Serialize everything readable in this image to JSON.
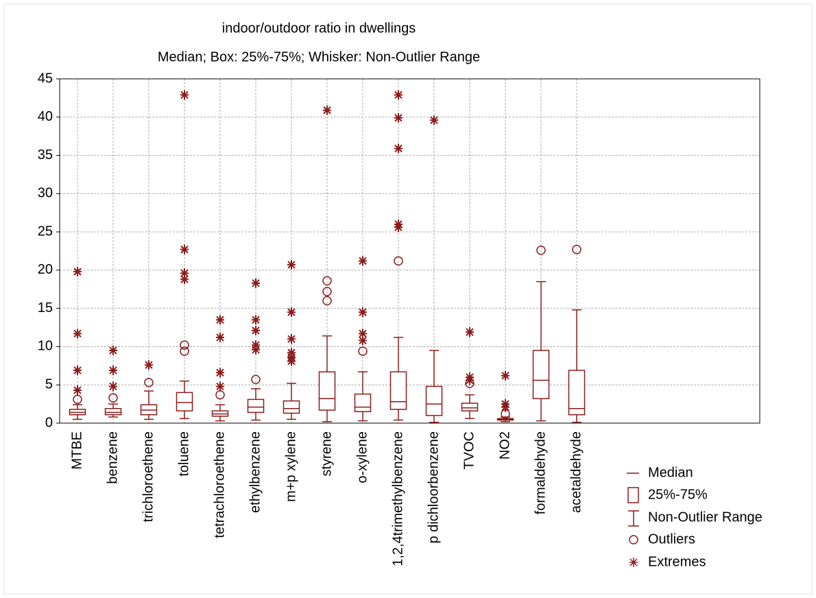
{
  "chart_data": {
    "type": "box",
    "title": "indoor/outdoor ratio in dwellings",
    "subtitle": "Median; Box: 25%-75%; Whisker: Non-Outlier Range",
    "color": "#8b1a1a",
    "ylim": [
      0,
      45
    ],
    "yticks": [
      0,
      5,
      10,
      15,
      20,
      25,
      30,
      35,
      40,
      45
    ],
    "grid": true,
    "legend": [
      "Median",
      "25%-75%",
      "Non-Outlier Range",
      "Outliers",
      "Extremes"
    ],
    "categories": [
      "MTBE",
      "benzene",
      "trichloroethene",
      "toluene",
      "tetrachloroethene",
      "ethylbenzene",
      "m+p xylene",
      "styrene",
      "o-xylene",
      "1,2,4trimethylbenzene",
      "p dichloorbenzene",
      "TVOC",
      "NO2",
      "formaldehyde",
      "acetaldehyde"
    ],
    "boxes": [
      {
        "whisker_low": 0.5,
        "q1": 1.1,
        "median": 1.4,
        "q3": 1.8,
        "whisker_high": 2.4,
        "outliers": [
          3.1
        ],
        "extremes": [
          4.3,
          6.9,
          11.7,
          19.8
        ]
      },
      {
        "whisker_low": 0.8,
        "q1": 1.1,
        "median": 1.4,
        "q3": 1.9,
        "whisker_high": 2.5,
        "outliers": [
          3.3
        ],
        "extremes": [
          4.8,
          6.9,
          9.5
        ]
      },
      {
        "whisker_low": 0.5,
        "q1": 1.1,
        "median": 1.7,
        "q3": 2.4,
        "whisker_high": 4.2,
        "outliers": [
          5.3
        ],
        "extremes": [
          7.6
        ]
      },
      {
        "whisker_low": 0.6,
        "q1": 1.6,
        "median": 2.7,
        "q3": 4.0,
        "whisker_high": 5.5,
        "outliers": [
          9.4,
          10.2
        ],
        "extremes": [
          18.8,
          19.6,
          22.7,
          42.9
        ]
      },
      {
        "whisker_low": 0.3,
        "q1": 0.9,
        "median": 1.2,
        "q3": 1.6,
        "whisker_high": 2.4,
        "outliers": [
          3.7
        ],
        "extremes": [
          4.8,
          6.6,
          11.2,
          13.5
        ]
      },
      {
        "whisker_low": 0.4,
        "q1": 1.4,
        "median": 2.1,
        "q3": 3.1,
        "whisker_high": 4.5,
        "outliers": [
          5.7
        ],
        "extremes": [
          9.6,
          10.2,
          12.1,
          13.5,
          18.3
        ]
      },
      {
        "whisker_low": 0.5,
        "q1": 1.3,
        "median": 1.9,
        "q3": 2.9,
        "whisker_high": 5.2,
        "outliers": [],
        "extremes": [
          8.1,
          8.6,
          9.2,
          11.0,
          14.5,
          20.7
        ]
      },
      {
        "whisker_low": 0.2,
        "q1": 1.7,
        "median": 3.2,
        "q3": 6.7,
        "whisker_high": 11.4,
        "outliers": [
          16.0,
          17.2,
          18.6
        ],
        "extremes": [
          40.9
        ]
      },
      {
        "whisker_low": 0.3,
        "q1": 1.5,
        "median": 2.1,
        "q3": 3.8,
        "whisker_high": 6.7,
        "outliers": [
          9.4
        ],
        "extremes": [
          10.8,
          11.7,
          14.5,
          21.2
        ]
      },
      {
        "whisker_low": 0.4,
        "q1": 1.8,
        "median": 2.8,
        "q3": 6.7,
        "whisker_high": 11.2,
        "outliers": [
          21.2
        ],
        "extremes": [
          25.6,
          26.0,
          35.9,
          39.9,
          42.9
        ]
      },
      {
        "whisker_low": 0.1,
        "q1": 1.0,
        "median": 2.5,
        "q3": 4.8,
        "whisker_high": 9.5,
        "outliers": [],
        "extremes": [
          39.6
        ]
      },
      {
        "whisker_low": 0.6,
        "q1": 1.6,
        "median": 2.0,
        "q3": 2.6,
        "whisker_high": 3.7,
        "outliers": [
          5.2
        ],
        "extremes": [
          5.6,
          6.0,
          11.9
        ]
      },
      {
        "whisker_low": 0.2,
        "q1": 0.4,
        "median": 0.5,
        "q3": 0.6,
        "whisker_high": 0.8,
        "outliers": [
          1.2
        ],
        "extremes": [
          2.1,
          2.5,
          6.2
        ]
      },
      {
        "whisker_low": 0.3,
        "q1": 3.2,
        "median": 5.6,
        "q3": 9.5,
        "whisker_high": 18.5,
        "outliers": [
          22.6
        ],
        "extremes": []
      },
      {
        "whisker_low": 0.1,
        "q1": 1.1,
        "median": 1.9,
        "q3": 6.9,
        "whisker_high": 14.8,
        "outliers": [
          22.7
        ],
        "extremes": []
      }
    ]
  }
}
